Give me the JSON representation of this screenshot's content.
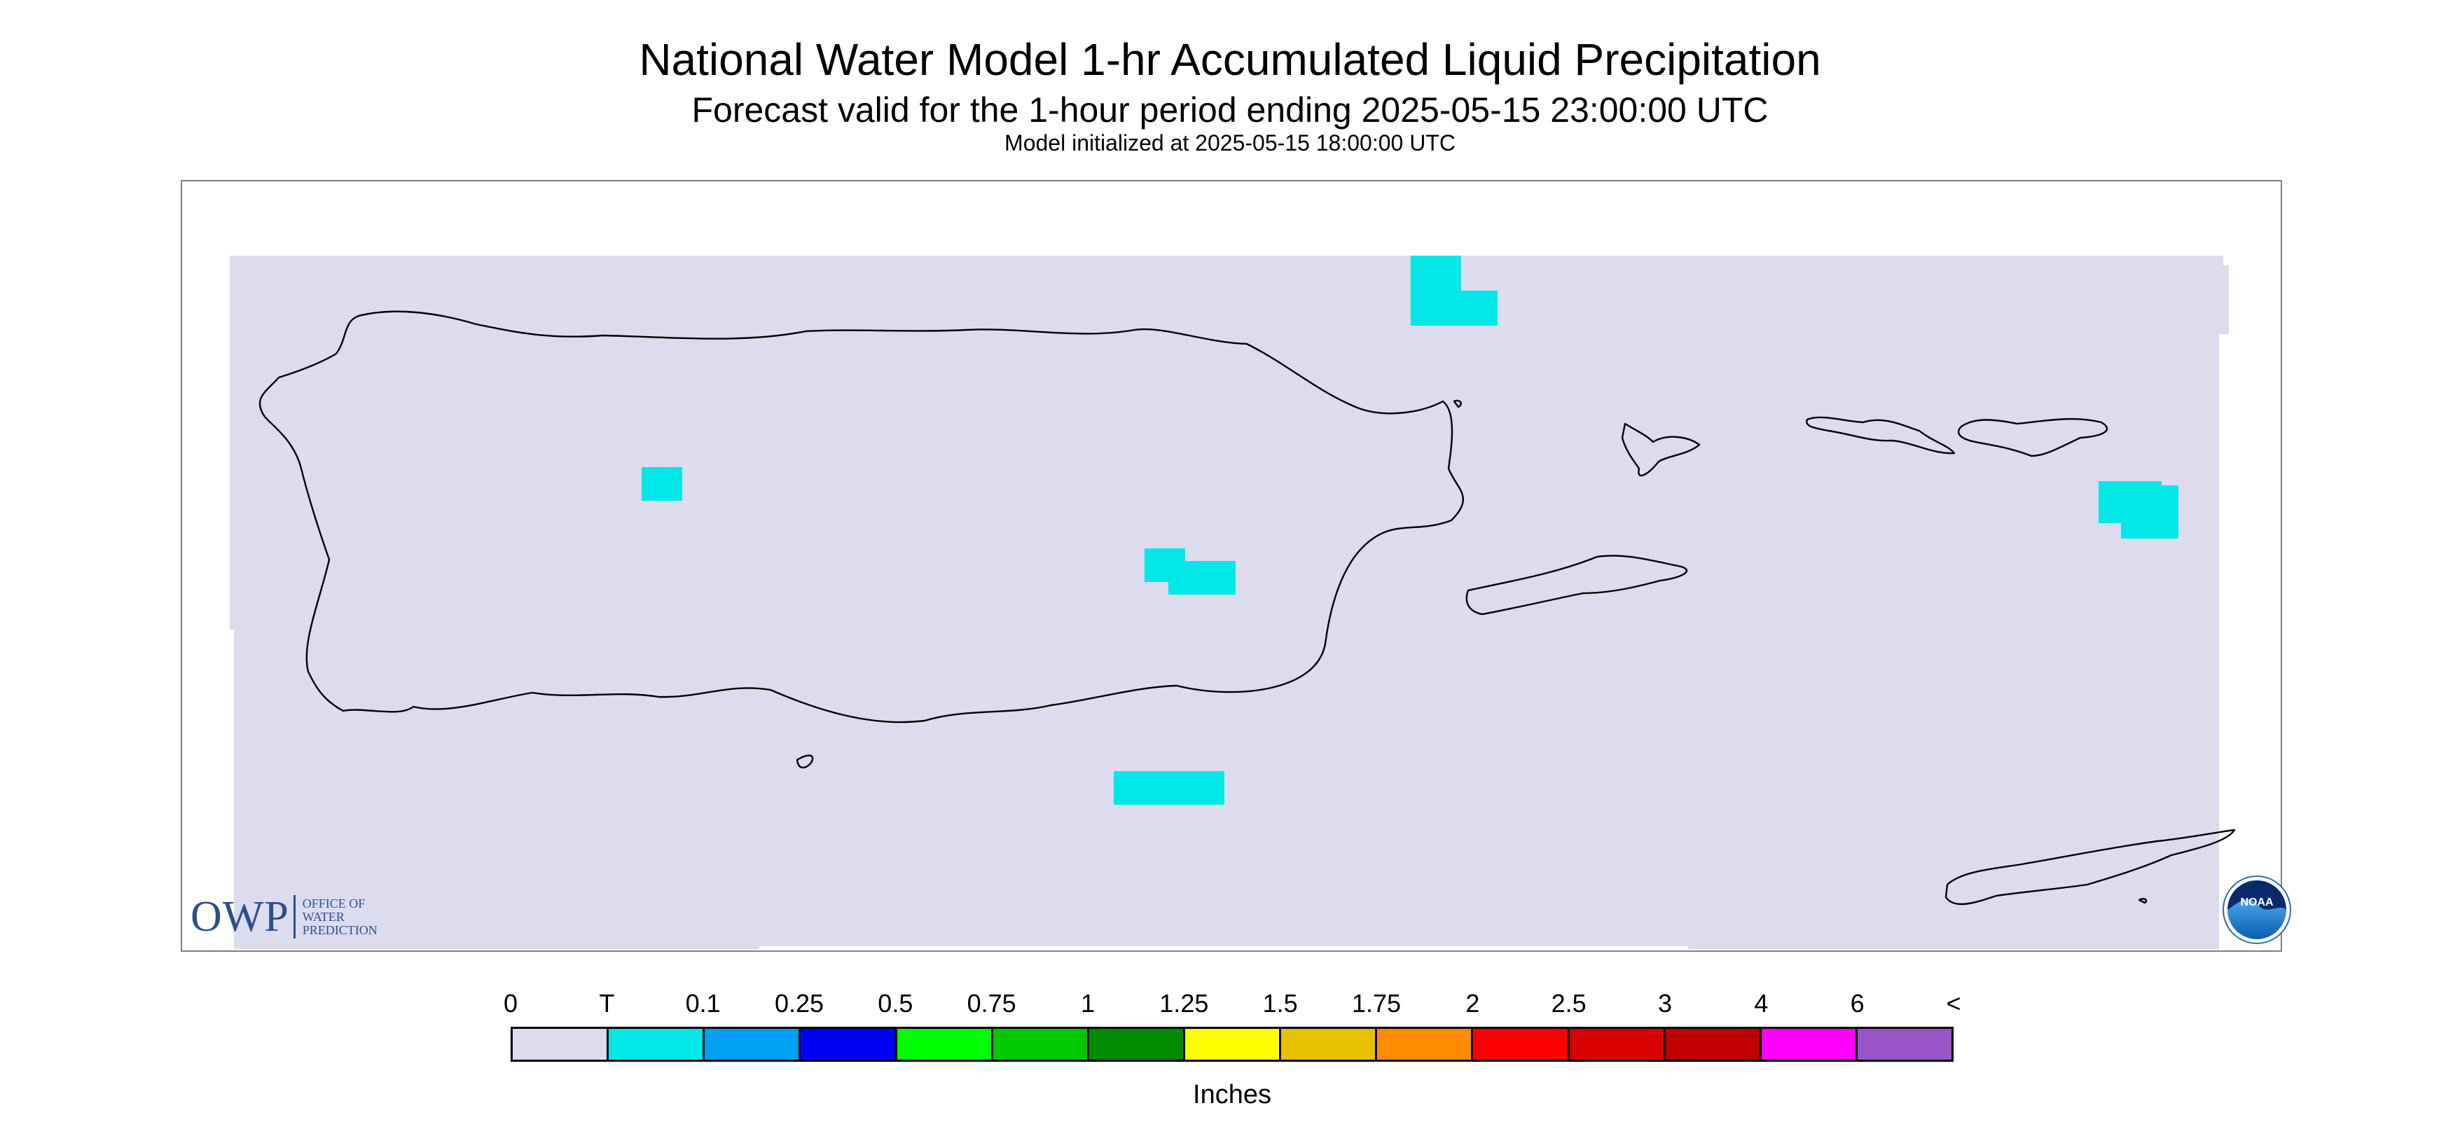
{
  "title": "National Water Model 1-hr Accumulated Liquid Precipitation",
  "subtitle": "Forecast valid for the 1-hour period ending 2025-05-15 23:00:00 UTC",
  "init_line": "Model initialized at 2025-05-15 18:00:00 UTC",
  "owp_logo": {
    "letters": "OWP",
    "line1": "OFFICE OF",
    "line2": "WATER",
    "line3": "PREDICTION"
  },
  "noaa_logo": {
    "text": "NOAA"
  },
  "legend": {
    "ticks": [
      "0",
      "T",
      "0.1",
      "0.25",
      "0.5",
      "0.75",
      "1",
      "1.25",
      "1.5",
      "1.75",
      "2",
      "2.5",
      "3",
      "4",
      "6",
      "<"
    ],
    "colors": [
      "#dcdcee",
      "#00e8e8",
      "#00a0f5",
      "#0000f5",
      "#00ff00",
      "#00c800",
      "#008c00",
      "#ffff00",
      "#e7c000",
      "#ff8c00",
      "#ff0000",
      "#d80000",
      "#c00000",
      "#ff00ff",
      "#9955c8"
    ],
    "unit": "Inches"
  },
  "map": {
    "region": "Puerto Rico and U.S. Virgin Islands",
    "background_color": "#dcdcee",
    "precip_color": "#00e8e8",
    "precip_category": "T"
  }
}
